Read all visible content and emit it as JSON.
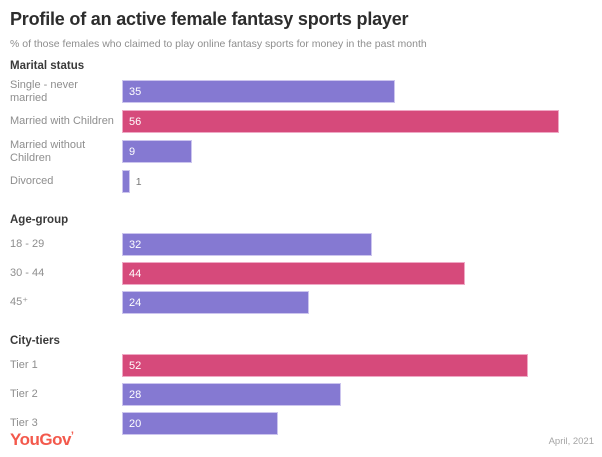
{
  "title": "Profile of an active female fantasy sports player",
  "subtitle": "% of those females who claimed to play online fantasy sports for money in the past month",
  "footer": {
    "brand": "YouGov",
    "date": "April, 2021"
  },
  "colors": {
    "bar": "#8579D2",
    "bar_border": "#CCC5EE",
    "highlight": "#D64A7B",
    "highlight_border": "#EFA9C5",
    "brand": "#F3594C"
  },
  "chart_data": {
    "type": "bar",
    "orientation": "horizontal",
    "unit": "%",
    "value_range": [
      0,
      56
    ],
    "legend": "none",
    "grid": false,
    "highlight_rule": "max value in each group shown in pink, others purple",
    "groups": [
      {
        "header": "Marital status",
        "categories": [
          "Single - never married",
          "Married with Children",
          "Married without Children",
          "Divorced"
        ],
        "values": [
          35,
          56,
          9,
          1
        ],
        "rows": [
          {
            "label": "Single - never married",
            "value": 35
          },
          {
            "label": "Married with Children",
            "value": 56
          },
          {
            "label": "Married without Children",
            "value": 9
          },
          {
            "label": "Divorced",
            "value": 1
          }
        ]
      },
      {
        "header": "Age-group",
        "categories": [
          "18 - 29",
          "30 - 44",
          "45⁺"
        ],
        "values": [
          32,
          44,
          24
        ],
        "rows": [
          {
            "label": "18 - 29",
            "value": 32
          },
          {
            "label": "30 - 44",
            "value": 44
          },
          {
            "label": "45⁺",
            "value": 24
          }
        ]
      },
      {
        "header": "City-tiers",
        "categories": [
          "Tier 1",
          "Tier 2",
          "Tier 3"
        ],
        "values": [
          52,
          28,
          20
        ],
        "rows": [
          {
            "label": "Tier 1",
            "value": 52
          },
          {
            "label": "Tier 2",
            "value": 28
          },
          {
            "label": "Tier 3",
            "value": 20
          }
        ]
      }
    ]
  }
}
